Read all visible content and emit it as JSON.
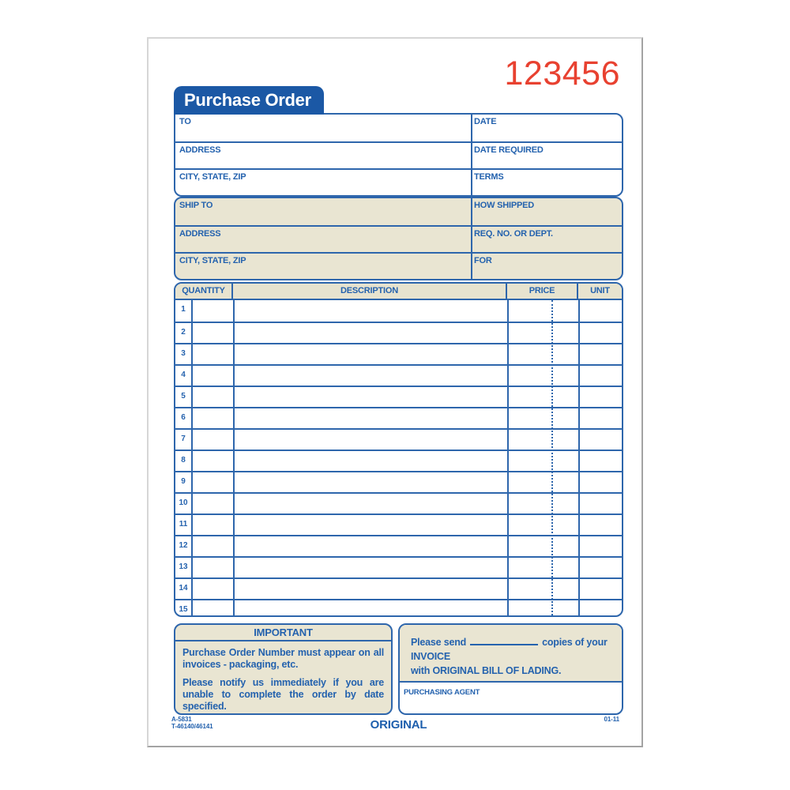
{
  "order_number": "123456",
  "title": "Purchase Order",
  "colors": {
    "form_blue": "#2e66ac",
    "label_blue": "#2462ae",
    "tab_blue": "#1b58a5",
    "tan": "#e9e5d2",
    "number_red": "#e84130"
  },
  "vendor_section": {
    "rows": [
      {
        "left": "TO",
        "right": "DATE"
      },
      {
        "left": "ADDRESS",
        "right": "DATE REQUIRED"
      },
      {
        "left": "CITY, STATE, ZIP",
        "right": "TERMS"
      }
    ]
  },
  "ship_section": {
    "rows": [
      {
        "left": "SHIP TO",
        "right": "HOW SHIPPED"
      },
      {
        "left": "ADDRESS",
        "right": "REQ. NO. OR DEPT."
      },
      {
        "left": "CITY, STATE, ZIP",
        "right": "FOR"
      }
    ]
  },
  "items_table": {
    "headers": [
      "QUANTITY",
      "DESCRIPTION",
      "PRICE",
      "UNIT"
    ],
    "row_numbers": [
      "1",
      "2",
      "3",
      "4",
      "5",
      "6",
      "7",
      "8",
      "9",
      "10",
      "11",
      "12",
      "13",
      "14",
      "15"
    ]
  },
  "important_box": {
    "title": "IMPORTANT",
    "paragraphs": [
      "Purchase Order Number must appear on all invoices - packaging, etc.",
      "Please notify us immediately if you are unable to complete the order by date specified."
    ]
  },
  "invoice_note": {
    "prefix": "Please send",
    "suffix": "copies of your INVOICE",
    "line2": "with ORIGINAL BILL OF LADING."
  },
  "purchasing_agent_label": "PURCHASING AGENT",
  "footer": {
    "form_code_1": "A-5831",
    "form_code_2": "T-46140/46141",
    "copy_label": "ORIGINAL",
    "revision": "01-11"
  }
}
